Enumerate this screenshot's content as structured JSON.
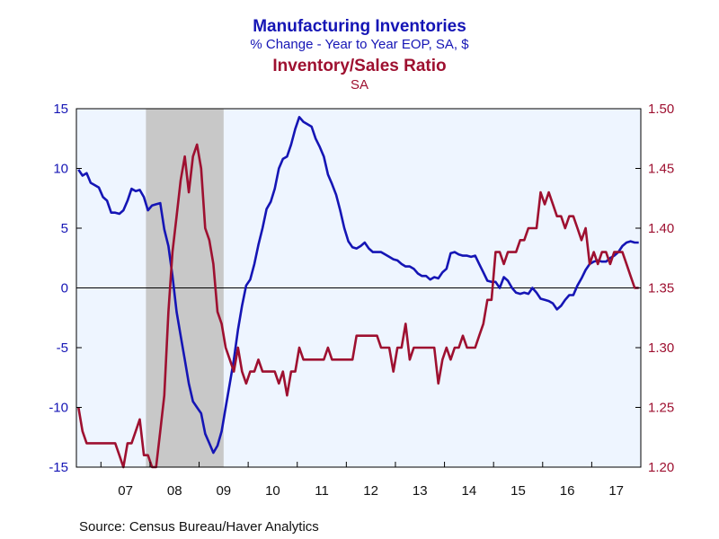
{
  "titles": {
    "line1": "Manufacturing Inventories",
    "line2": "% Change - Year to Year    EOP, SA, $",
    "line3": "Inventory/Sales Ratio",
    "line4": "SA"
  },
  "source": "Source:  Census Bureau/Haver Analytics",
  "colors": {
    "inventories": "#1515b5",
    "ratio": "#9e1030",
    "recession": "#c8c8c8",
    "plot_bg": "#eef5ff"
  },
  "chart_data": {
    "type": "line",
    "x_range": [
      "2006-07",
      "2017-12"
    ],
    "x_tick_labels": [
      "07",
      "08",
      "09",
      "10",
      "11",
      "12",
      "13",
      "14",
      "15",
      "16",
      "17"
    ],
    "left_axis": {
      "ylim": [
        -15,
        15
      ],
      "ticks": [
        -15,
        -10,
        -5,
        0,
        5,
        10,
        15
      ]
    },
    "right_axis": {
      "ylim": [
        1.2,
        1.5
      ],
      "ticks": [
        "1.20",
        "1.25",
        "1.30",
        "1.35",
        "1.40",
        "1.45",
        "1.50"
      ]
    },
    "recession": {
      "start": "2007-12",
      "end": "2009-06"
    },
    "zero_line": true,
    "series": [
      {
        "name": "Manufacturing Inventories",
        "axis": "left",
        "points": [
          [
            "2006-07",
            9.9
          ],
          [
            "2006-08",
            9.4
          ],
          [
            "2006-09",
            9.6
          ],
          [
            "2006-10",
            8.8
          ],
          [
            "2006-11",
            8.6
          ],
          [
            "2006-12",
            8.4
          ],
          [
            "2007-01",
            7.6
          ],
          [
            "2007-02",
            7.3
          ],
          [
            "2007-03",
            6.3
          ],
          [
            "2007-04",
            6.3
          ],
          [
            "2007-05",
            6.2
          ],
          [
            "2007-06",
            6.5
          ],
          [
            "2007-07",
            7.3
          ],
          [
            "2007-08",
            8.3
          ],
          [
            "2007-09",
            8.1
          ],
          [
            "2007-10",
            8.2
          ],
          [
            "2007-11",
            7.6
          ],
          [
            "2007-12",
            6.5
          ],
          [
            "2008-01",
            6.9
          ],
          [
            "2008-02",
            7.0
          ],
          [
            "2008-03",
            7.1
          ],
          [
            "2008-04",
            4.9
          ],
          [
            "2008-05",
            3.5
          ],
          [
            "2008-06",
            1.0
          ],
          [
            "2008-07",
            -2.0
          ],
          [
            "2008-08",
            -4.0
          ],
          [
            "2008-09",
            -6.0
          ],
          [
            "2008-10",
            -8.0
          ],
          [
            "2008-11",
            -9.5
          ],
          [
            "2008-12",
            -10.0
          ],
          [
            "2009-01",
            -10.5
          ],
          [
            "2009-02",
            -12.2
          ],
          [
            "2009-03",
            -13.0
          ],
          [
            "2009-04",
            -13.8
          ],
          [
            "2009-05",
            -13.2
          ],
          [
            "2009-06",
            -12.0
          ],
          [
            "2009-07",
            -10.0
          ],
          [
            "2009-08",
            -8.0
          ],
          [
            "2009-09",
            -6.0
          ],
          [
            "2009-10",
            -3.5
          ],
          [
            "2009-11",
            -1.5
          ],
          [
            "2009-12",
            0.2
          ],
          [
            "2010-01",
            0.7
          ],
          [
            "2010-02",
            2.0
          ],
          [
            "2010-03",
            3.6
          ],
          [
            "2010-04",
            5.0
          ],
          [
            "2010-05",
            6.6
          ],
          [
            "2010-06",
            7.2
          ],
          [
            "2010-07",
            8.3
          ],
          [
            "2010-08",
            10.0
          ],
          [
            "2010-09",
            10.8
          ],
          [
            "2010-10",
            11.0
          ],
          [
            "2010-11",
            12.0
          ],
          [
            "2010-12",
            13.3
          ],
          [
            "2011-01",
            14.3
          ],
          [
            "2011-02",
            13.9
          ],
          [
            "2011-03",
            13.7
          ],
          [
            "2011-04",
            13.5
          ],
          [
            "2011-05",
            12.5
          ],
          [
            "2011-06",
            11.8
          ],
          [
            "2011-07",
            11.0
          ],
          [
            "2011-08",
            9.5
          ],
          [
            "2011-09",
            8.7
          ],
          [
            "2011-10",
            7.8
          ],
          [
            "2011-11",
            6.5
          ],
          [
            "2011-12",
            5.0
          ],
          [
            "2012-01",
            3.9
          ],
          [
            "2012-02",
            3.4
          ],
          [
            "2012-03",
            3.3
          ],
          [
            "2012-04",
            3.5
          ],
          [
            "2012-05",
            3.8
          ],
          [
            "2012-06",
            3.3
          ],
          [
            "2012-07",
            3.0
          ],
          [
            "2012-08",
            3.0
          ],
          [
            "2012-09",
            3.0
          ],
          [
            "2012-10",
            2.8
          ],
          [
            "2012-11",
            2.6
          ],
          [
            "2012-12",
            2.4
          ],
          [
            "2013-01",
            2.3
          ],
          [
            "2013-02",
            2.0
          ],
          [
            "2013-03",
            1.8
          ],
          [
            "2013-04",
            1.8
          ],
          [
            "2013-05",
            1.6
          ],
          [
            "2013-06",
            1.2
          ],
          [
            "2013-07",
            1.0
          ],
          [
            "2013-08",
            1.0
          ],
          [
            "2013-09",
            0.7
          ],
          [
            "2013-10",
            0.9
          ],
          [
            "2013-11",
            0.8
          ],
          [
            "2013-12",
            1.3
          ],
          [
            "2014-01",
            1.6
          ],
          [
            "2014-02",
            2.9
          ],
          [
            "2014-03",
            3.0
          ],
          [
            "2014-04",
            2.8
          ],
          [
            "2014-05",
            2.7
          ],
          [
            "2014-06",
            2.7
          ],
          [
            "2014-07",
            2.6
          ],
          [
            "2014-08",
            2.7
          ],
          [
            "2014-09",
            2.0
          ],
          [
            "2014-10",
            1.3
          ],
          [
            "2014-11",
            0.6
          ],
          [
            "2014-12",
            0.5
          ],
          [
            "2015-01",
            0.5
          ],
          [
            "2015-02",
            0.0
          ],
          [
            "2015-03",
            0.9
          ],
          [
            "2015-04",
            0.6
          ],
          [
            "2015-05",
            0.0
          ],
          [
            "2015-06",
            -0.4
          ],
          [
            "2015-07",
            -0.5
          ],
          [
            "2015-08",
            -0.4
          ],
          [
            "2015-09",
            -0.5
          ],
          [
            "2015-10",
            0.0
          ],
          [
            "2015-11",
            -0.4
          ],
          [
            "2015-12",
            -0.9
          ],
          [
            "2016-01",
            -1.0
          ],
          [
            "2016-02",
            -1.1
          ],
          [
            "2016-03",
            -1.3
          ],
          [
            "2016-04",
            -1.8
          ],
          [
            "2016-05",
            -1.5
          ],
          [
            "2016-06",
            -1.0
          ],
          [
            "2016-07",
            -0.6
          ],
          [
            "2016-08",
            -0.6
          ],
          [
            "2016-09",
            0.2
          ],
          [
            "2016-10",
            0.8
          ],
          [
            "2016-11",
            1.5
          ],
          [
            "2016-12",
            2.0
          ],
          [
            "2017-01",
            2.2
          ],
          [
            "2017-02",
            2.3
          ],
          [
            "2017-03",
            2.2
          ],
          [
            "2017-04",
            2.2
          ],
          [
            "2017-05",
            2.5
          ],
          [
            "2017-06",
            2.7
          ],
          [
            "2017-07",
            3.0
          ],
          [
            "2017-08",
            3.5
          ],
          [
            "2017-09",
            3.8
          ],
          [
            "2017-10",
            3.9
          ],
          [
            "2017-11",
            3.8
          ],
          [
            "2017-12",
            3.8
          ]
        ]
      },
      {
        "name": "Inventory/Sales Ratio",
        "axis": "right",
        "points": [
          [
            "2006-07",
            1.25
          ],
          [
            "2006-08",
            1.23
          ],
          [
            "2006-09",
            1.22
          ],
          [
            "2006-10",
            1.22
          ],
          [
            "2006-11",
            1.22
          ],
          [
            "2006-12",
            1.22
          ],
          [
            "2007-01",
            1.22
          ],
          [
            "2007-02",
            1.22
          ],
          [
            "2007-03",
            1.22
          ],
          [
            "2007-04",
            1.22
          ],
          [
            "2007-05",
            1.21
          ],
          [
            "2007-06",
            1.2
          ],
          [
            "2007-07",
            1.22
          ],
          [
            "2007-08",
            1.22
          ],
          [
            "2007-09",
            1.23
          ],
          [
            "2007-10",
            1.24
          ],
          [
            "2007-11",
            1.21
          ],
          [
            "2007-12",
            1.21
          ],
          [
            "2008-01",
            1.2
          ],
          [
            "2008-02",
            1.2
          ],
          [
            "2008-03",
            1.23
          ],
          [
            "2008-04",
            1.26
          ],
          [
            "2008-05",
            1.33
          ],
          [
            "2008-06",
            1.38
          ],
          [
            "2008-07",
            1.41
          ],
          [
            "2008-08",
            1.44
          ],
          [
            "2008-09",
            1.46
          ],
          [
            "2008-10",
            1.43
          ],
          [
            "2008-11",
            1.46
          ],
          [
            "2008-12",
            1.47
          ],
          [
            "2009-01",
            1.45
          ],
          [
            "2009-02",
            1.4
          ],
          [
            "2009-03",
            1.39
          ],
          [
            "2009-04",
            1.37
          ],
          [
            "2009-05",
            1.33
          ],
          [
            "2009-06",
            1.32
          ],
          [
            "2009-07",
            1.3
          ],
          [
            "2009-08",
            1.29
          ],
          [
            "2009-09",
            1.28
          ],
          [
            "2009-10",
            1.3
          ],
          [
            "2009-11",
            1.28
          ],
          [
            "2009-12",
            1.27
          ],
          [
            "2010-01",
            1.28
          ],
          [
            "2010-02",
            1.28
          ],
          [
            "2010-03",
            1.29
          ],
          [
            "2010-04",
            1.28
          ],
          [
            "2010-05",
            1.28
          ],
          [
            "2010-06",
            1.28
          ],
          [
            "2010-07",
            1.28
          ],
          [
            "2010-08",
            1.27
          ],
          [
            "2010-09",
            1.28
          ],
          [
            "2010-10",
            1.26
          ],
          [
            "2010-11",
            1.28
          ],
          [
            "2010-12",
            1.28
          ],
          [
            "2011-01",
            1.3
          ],
          [
            "2011-02",
            1.29
          ],
          [
            "2011-03",
            1.29
          ],
          [
            "2011-04",
            1.29
          ],
          [
            "2011-05",
            1.29
          ],
          [
            "2011-06",
            1.29
          ],
          [
            "2011-07",
            1.29
          ],
          [
            "2011-08",
            1.3
          ],
          [
            "2011-09",
            1.29
          ],
          [
            "2011-10",
            1.29
          ],
          [
            "2011-11",
            1.29
          ],
          [
            "2011-12",
            1.29
          ],
          [
            "2012-01",
            1.29
          ],
          [
            "2012-02",
            1.29
          ],
          [
            "2012-03",
            1.31
          ],
          [
            "2012-04",
            1.31
          ],
          [
            "2012-05",
            1.31
          ],
          [
            "2012-06",
            1.31
          ],
          [
            "2012-07",
            1.31
          ],
          [
            "2012-08",
            1.31
          ],
          [
            "2012-09",
            1.3
          ],
          [
            "2012-10",
            1.3
          ],
          [
            "2012-11",
            1.3
          ],
          [
            "2012-12",
            1.28
          ],
          [
            "2013-01",
            1.3
          ],
          [
            "2013-02",
            1.3
          ],
          [
            "2013-03",
            1.32
          ],
          [
            "2013-04",
            1.29
          ],
          [
            "2013-05",
            1.3
          ],
          [
            "2013-06",
            1.3
          ],
          [
            "2013-07",
            1.3
          ],
          [
            "2013-08",
            1.3
          ],
          [
            "2013-09",
            1.3
          ],
          [
            "2013-10",
            1.3
          ],
          [
            "2013-11",
            1.27
          ],
          [
            "2013-12",
            1.29
          ],
          [
            "2014-01",
            1.3
          ],
          [
            "2014-02",
            1.29
          ],
          [
            "2014-03",
            1.3
          ],
          [
            "2014-04",
            1.3
          ],
          [
            "2014-05",
            1.31
          ],
          [
            "2014-06",
            1.3
          ],
          [
            "2014-07",
            1.3
          ],
          [
            "2014-08",
            1.3
          ],
          [
            "2014-09",
            1.31
          ],
          [
            "2014-10",
            1.32
          ],
          [
            "2014-11",
            1.34
          ],
          [
            "2014-12",
            1.34
          ],
          [
            "2015-01",
            1.38
          ],
          [
            "2015-02",
            1.38
          ],
          [
            "2015-03",
            1.37
          ],
          [
            "2015-04",
            1.38
          ],
          [
            "2015-05",
            1.38
          ],
          [
            "2015-06",
            1.38
          ],
          [
            "2015-07",
            1.39
          ],
          [
            "2015-08",
            1.39
          ],
          [
            "2015-09",
            1.4
          ],
          [
            "2015-10",
            1.4
          ],
          [
            "2015-11",
            1.4
          ],
          [
            "2015-12",
            1.43
          ],
          [
            "2016-01",
            1.42
          ],
          [
            "2016-02",
            1.43
          ],
          [
            "2016-03",
            1.42
          ],
          [
            "2016-04",
            1.41
          ],
          [
            "2016-05",
            1.41
          ],
          [
            "2016-06",
            1.4
          ],
          [
            "2016-07",
            1.41
          ],
          [
            "2016-08",
            1.41
          ],
          [
            "2016-09",
            1.4
          ],
          [
            "2016-10",
            1.39
          ],
          [
            "2016-11",
            1.4
          ],
          [
            "2016-12",
            1.37
          ],
          [
            "2017-01",
            1.38
          ],
          [
            "2017-02",
            1.37
          ],
          [
            "2017-03",
            1.38
          ],
          [
            "2017-04",
            1.38
          ],
          [
            "2017-05",
            1.37
          ],
          [
            "2017-06",
            1.38
          ],
          [
            "2017-07",
            1.38
          ],
          [
            "2017-08",
            1.38
          ],
          [
            "2017-09",
            1.37
          ],
          [
            "2017-10",
            1.36
          ],
          [
            "2017-11",
            1.35
          ],
          [
            "2017-12",
            1.35
          ]
        ]
      }
    ]
  }
}
